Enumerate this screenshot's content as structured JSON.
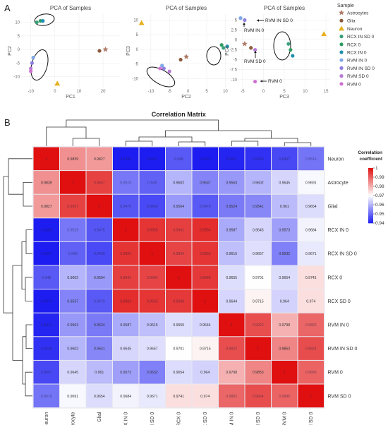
{
  "panel_labels": [
    "A",
    "B"
  ],
  "colors": {
    "Astrocytes": "#b07a68",
    "Glia": "#8b5a3c",
    "Neuron": "#e7b020",
    "RCX IN SD 0": "#3aa079",
    "RCX 0": "#2f9c61",
    "RCX IN 0": "#1f8fae",
    "RVM IN 0": "#7fa8e6",
    "RVM IN SD 0": "#8c7fe0",
    "RVM SD 0": "#b77ad6",
    "RVM 0": "#d070d0",
    "heat_low": "#1d1df2",
    "heat_mid": "#ffffff",
    "heat_high": "#e01010"
  },
  "chart_data": [
    {
      "type": "scatter",
      "title": "PCA of Samples",
      "xlabel": "PC1",
      "ylabel": "PC2",
      "xlim": [
        -14,
        27
      ],
      "ylim": [
        -14,
        13
      ],
      "xticks": [
        "-10",
        "0",
        "10",
        "20"
      ],
      "yticks": [
        "-10",
        "-5",
        "0",
        "5",
        "10"
      ],
      "points": [
        {
          "sample": "Astrocytes",
          "x": 21,
          "y": 0
        },
        {
          "sample": "Glia",
          "x": 18.5,
          "y": -0.5
        },
        {
          "sample": "Neuron",
          "x": 1,
          "y": -12.5
        },
        {
          "sample": "RCX IN SD 0",
          "x": -7.5,
          "y": 10
        },
        {
          "sample": "RCX 0",
          "x": -6,
          "y": 10.5
        },
        {
          "sample": "RCX IN 0",
          "x": -5,
          "y": 10.5
        },
        {
          "sample": "RVM IN 0",
          "x": -9,
          "y": -3
        },
        {
          "sample": "RVM IN SD 0",
          "x": -9.5,
          "y": -5
        },
        {
          "sample": "RVM SD 0",
          "x": -10,
          "y": -7
        },
        {
          "sample": "RVM 0",
          "x": -10,
          "y": -8
        }
      ]
    },
    {
      "type": "scatter",
      "title": "PCA of Samples",
      "xlabel": "PC2",
      "ylabel": "PC3",
      "xlim": [
        -13,
        12
      ],
      "ylim": [
        -13,
        12
      ],
      "xticks": [
        "-10",
        "-5",
        "0",
        "5",
        "10"
      ],
      "yticks": [
        "-10",
        "-5",
        "0",
        "5",
        "10"
      ],
      "points": [
        {
          "sample": "Astrocytes",
          "x": -0.5,
          "y": -2.5
        },
        {
          "sample": "Glia",
          "x": -2,
          "y": -3.5
        },
        {
          "sample": "Neuron",
          "x": -12.5,
          "y": 9
        },
        {
          "sample": "RCX IN SD 0",
          "x": 9.5,
          "y": 0.5
        },
        {
          "sample": "RCX 0",
          "x": 9,
          "y": 1.5
        },
        {
          "sample": "RCX IN 0",
          "x": 10.5,
          "y": 1
        },
        {
          "sample": "RVM IN 0",
          "x": -7,
          "y": -5.5
        },
        {
          "sample": "RVM IN SD 0",
          "x": -6.5,
          "y": -6.5
        },
        {
          "sample": "RVM SD 0",
          "x": -5,
          "y": -7.5
        },
        {
          "sample": "RVM 0",
          "x": -7.5,
          "y": -6.5
        }
      ]
    },
    {
      "type": "scatter",
      "title": "PCA of Samples",
      "xlabel": "PC3",
      "ylabel": "PC4",
      "xlim": [
        -6,
        16
      ],
      "ylim": [
        -12,
        6.5
      ],
      "xticks": [
        "-5",
        "0",
        "5",
        "10",
        "15"
      ],
      "yticks": [
        "-10",
        "-7.5",
        "-5",
        "-2.5",
        "0",
        "2.5",
        "5"
      ],
      "annotations": [
        "RVM IN SD 0",
        "RVM IN 0",
        "RVM SD 0",
        "RVM 0"
      ],
      "points": [
        {
          "sample": "Astrocytes",
          "x": -4.5,
          "y": -1
        },
        {
          "sample": "Glia",
          "x": -3,
          "y": -2
        },
        {
          "sample": "Neuron",
          "x": 14.5,
          "y": 1.5
        },
        {
          "sample": "RCX IN SD 0",
          "x": 6,
          "y": -1
        },
        {
          "sample": "RCX 0",
          "x": 6.5,
          "y": -2.5
        },
        {
          "sample": "RCX IN 0",
          "x": 7,
          "y": -4
        },
        {
          "sample": "RVM IN 0",
          "x": -5.5,
          "y": 5.5
        },
        {
          "sample": "RVM IN SD 0",
          "x": -4.5,
          "y": 5
        },
        {
          "sample": "RVM SD 0",
          "x": -2,
          "y": -2.5
        },
        {
          "sample": "RVM 0",
          "x": -2,
          "y": -10.5
        }
      ]
    },
    {
      "type": "heatmap",
      "title": "Correlation Matrix",
      "colorbar_title": [
        "Correlation",
        "coefficient"
      ],
      "colorbar_range": [
        0.94,
        1
      ],
      "colorbar_ticks": [
        "1",
        "0.99",
        "0.98",
        "0.97",
        "0.96",
        "0.95",
        "0.94"
      ],
      "labels": [
        "Neuron",
        "Astrocyte",
        "Glial",
        "RCX IN 0",
        "RCX IN SD 0",
        "RCX 0",
        "RCX SD 0",
        "RVM IN 0",
        "RVM IN SD 0",
        "RVM 0",
        "RVM SD 0"
      ],
      "matrix": [
        [
          1,
          0.9839,
          0.9827,
          0.9389,
          0.9357,
          0.948,
          0.9373,
          0.9411,
          0.9426,
          0.9457,
          0.9516
        ],
        [
          0.9839,
          1,
          0.9937,
          0.9519,
          0.949,
          0.9602,
          0.9537,
          0.9563,
          0.9602,
          0.9645,
          0.9691
        ],
        [
          0.9827,
          0.9937,
          1,
          0.9475,
          0.9459,
          0.9564,
          0.9479,
          0.9524,
          0.9541,
          0.961,
          0.9654
        ],
        [
          0.9389,
          0.9519,
          0.9475,
          1,
          0.9955,
          0.9941,
          0.9964,
          0.9587,
          0.9645,
          0.9573,
          0.9684
        ],
        [
          0.9357,
          0.949,
          0.9459,
          0.9955,
          1,
          0.9934,
          0.9953,
          0.9615,
          0.9657,
          0.9532,
          0.9671
        ],
        [
          0.948,
          0.9602,
          0.9564,
          0.9941,
          0.9934,
          1,
          0.9948,
          0.9655,
          0.9701,
          0.9654,
          0.9741
        ],
        [
          0.9373,
          0.9537,
          0.9479,
          0.9964,
          0.9953,
          0.9948,
          1,
          0.9644,
          0.9715,
          0.964,
          0.974
        ],
        [
          0.9411,
          0.9563,
          0.9524,
          0.9587,
          0.9615,
          0.9655,
          0.9644,
          1,
          0.9922,
          0.9798,
          0.9892
        ],
        [
          0.9426,
          0.9602,
          0.9541,
          0.9645,
          0.9657,
          0.9701,
          0.9715,
          0.9922,
          1,
          0.9853,
          0.9924
        ],
        [
          0.9457,
          0.9645,
          0.961,
          0.9573,
          0.9532,
          0.9654,
          0.964,
          0.9798,
          0.9853,
          1,
          0.9896
        ],
        [
          0.9516,
          0.9691,
          0.9654,
          0.9684,
          0.9671,
          0.9741,
          0.974,
          0.9892,
          0.9924,
          0.9896,
          1
        ]
      ]
    }
  ],
  "legend": {
    "title": "Sample",
    "items": [
      {
        "label": "Astrocytes",
        "shape": "star"
      },
      {
        "label": "Glia",
        "shape": "circle"
      },
      {
        "label": "Neuron",
        "shape": "triangle"
      },
      {
        "label": "RCX IN SD 0",
        "shape": "circle"
      },
      {
        "label": "RCX 0",
        "shape": "circle"
      },
      {
        "label": "RCX IN 0",
        "shape": "circle"
      },
      {
        "label": "RVM IN 0",
        "shape": "circle"
      },
      {
        "label": "RVM IN SD 0",
        "shape": "circle"
      },
      {
        "label": "RVM SD 0",
        "shape": "circle"
      },
      {
        "label": "RVM 0",
        "shape": "circle"
      }
    ]
  }
}
